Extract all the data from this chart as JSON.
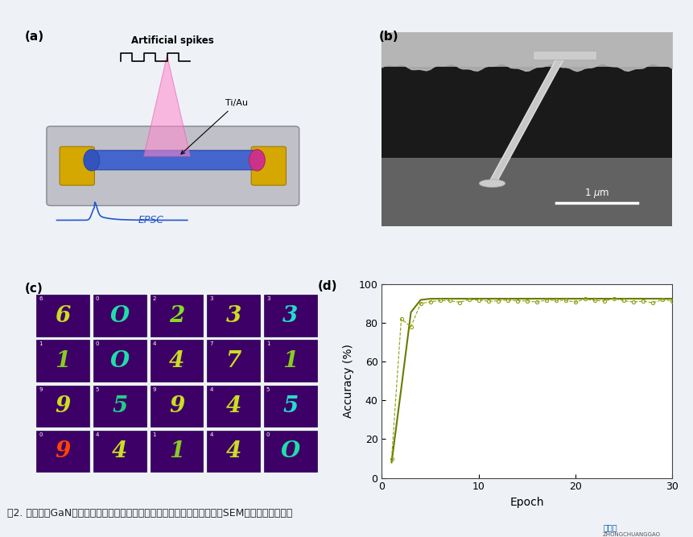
{
  "background_color": "#eef2f7",
  "fig_width": 8.61,
  "fig_height": 6.67,
  "panel_labels": [
    "(a)",
    "(b)",
    "(c)",
    "(d)"
  ],
  "panel_label_fontsize": 11,
  "panel_label_fontweight": "bold",
  "plot_d_xlabel": "Epoch",
  "plot_d_ylabel": "Accuracy (%)",
  "plot_d_xlim": [
    0,
    30
  ],
  "plot_d_ylim": [
    0,
    100
  ],
  "plot_d_xticks": [
    0,
    10,
    20,
    30
  ],
  "plot_d_yticks": [
    0,
    20,
    40,
    60,
    80,
    100
  ],
  "plot_d_line_color": "#6b7a00",
  "plot_d_marker_color": "#8fa010",
  "plot_d_marker_size": 3,
  "footer_text": "图2. 基于单根GaN纳米柱的人工突触器件的结构示意图、扫描电子显微镜（SEM）图片及其数字识",
  "footer_fontsize": 9,
  "footer_color": "#222222",
  "digit_rows": [
    [
      "6",
      "O",
      "2",
      "3",
      "3"
    ],
    [
      "1",
      "O",
      "4",
      "7",
      "1"
    ],
    [
      "9",
      "5",
      "9",
      "4",
      "5"
    ],
    [
      "9",
      "4",
      "1",
      "4",
      "O"
    ]
  ],
  "small_labels": [
    [
      "6",
      "0",
      "2",
      "3",
      "3"
    ],
    [
      "1",
      "0",
      "4",
      "7",
      "1"
    ],
    [
      "9",
      "5",
      "9",
      "4",
      "5"
    ],
    [
      "0",
      "4",
      "1",
      "4",
      "0"
    ]
  ],
  "digit_colors": [
    "#ccdd22",
    "#22ddaa",
    "#ccdd22",
    "#ccdd22",
    "#22ddcc"
  ],
  "cell_bg": "#3d0066",
  "cell_border": "#220044"
}
